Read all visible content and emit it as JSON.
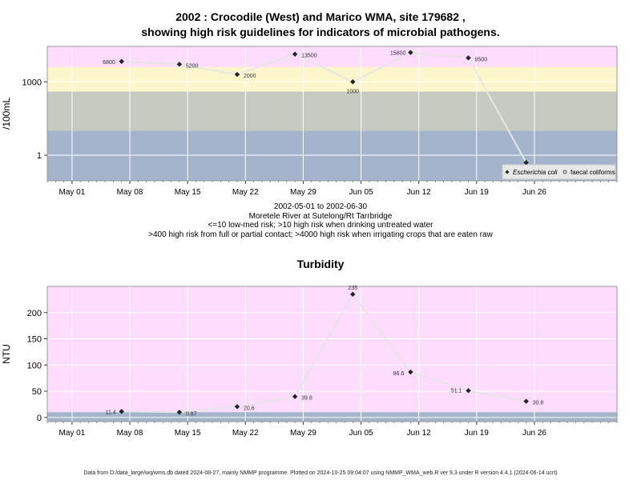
{
  "title_line1": "2002 : Crocodile (West) and Marico WMA, site 179682 ,",
  "title_line2": "showing high risk guidelines for indicators of microbial pathogens.",
  "date_range": "2002-05-01 to 2002-06-30",
  "site_name": "Moretele River at Sutelong/Rt Tarrbridge",
  "note1": "<=10 low-med risk; >10 high risk when drinking untreated water",
  "note2": ">400 high risk from full or partial contact; >4000 high risk when irrigating crops that are eaten raw",
  "footer": "Data from D:/data_large/wq/wms.db dated 2024-08-27, mainly NMMP programme. Plotted on 2024-10-25 09:04:07 using NMMP_WMA_web.R ver 9.3 under R version 4.4.1 (2024-06-14 ucrt)",
  "colors": {
    "pink": "#fddcfd",
    "yellow": "#fdf6cb",
    "green": "#c6cac0",
    "blue": "#a3b4cc",
    "line": "#e6e6e6",
    "point": "#222222"
  },
  "chart_data": [
    {
      "type": "line",
      "title": "",
      "xlabel": "",
      "ylabel": "/100mL",
      "y_scale": "log",
      "ylim": [
        0.09,
        28000
      ],
      "x_ticks": [
        "May 01",
        "May 08",
        "May 15",
        "May 22",
        "May 29",
        "Jun 05",
        "Jun 12",
        "Jun 19",
        "Jun 26"
      ],
      "x_tick_dates": [
        "2002-05-01",
        "2002-05-08",
        "2002-05-15",
        "2002-05-22",
        "2002-05-29",
        "2002-06-05",
        "2002-06-12",
        "2002-06-19",
        "2002-06-26"
      ],
      "xlim": [
        "2002-04-28",
        "2002-07-06"
      ],
      "y_ticks": [
        1,
        1000
      ],
      "y_tick_labels": [
        "1",
        "1000"
      ],
      "bands": [
        {
          "from": 4000,
          "to": 28000,
          "color": "#fddcfd"
        },
        {
          "from": 400,
          "to": 4000,
          "color": "#fdf6cb"
        },
        {
          "from": 10,
          "to": 400,
          "color": "#c6cac0"
        },
        {
          "from": 0.09,
          "to": 10,
          "color": "#a3b4cc"
        }
      ],
      "grid": true,
      "legend_position": "bottom-right",
      "legend": [
        {
          "label": "Escherichia coli",
          "marker": "filled",
          "italic": true
        },
        {
          "label": "faecal coliforms",
          "marker": "open",
          "italic": false
        }
      ],
      "series": [
        {
          "name": "Escherichia coli",
          "x": [
            "2002-05-07",
            "2002-05-14",
            "2002-05-21",
            "2002-05-28",
            "2002-06-04",
            "2002-06-11",
            "2002-06-18",
            "2002-06-25"
          ],
          "values": [
            6800,
            5200,
            2000,
            13500,
            1000,
            15800,
            9500,
            0.5
          ],
          "labels": [
            "6800",
            "5200",
            "2000",
            "13500",
            "1000",
            "15800",
            "9500",
            ""
          ]
        }
      ]
    },
    {
      "type": "line",
      "title": "Turbidity",
      "xlabel": "",
      "ylabel": "NTU",
      "y_scale": "linear",
      "ylim": [
        -8,
        250
      ],
      "x_ticks": [
        "May 01",
        "May 08",
        "May 15",
        "May 22",
        "May 29",
        "Jun 05",
        "Jun 12",
        "Jun 19",
        "Jun 26"
      ],
      "x_tick_dates": [
        "2002-05-01",
        "2002-05-08",
        "2002-05-15",
        "2002-05-22",
        "2002-05-29",
        "2002-06-05",
        "2002-06-12",
        "2002-06-19",
        "2002-06-26"
      ],
      "xlim": [
        "2002-04-28",
        "2002-07-06"
      ],
      "y_ticks": [
        0,
        50,
        100,
        150,
        200
      ],
      "y_tick_labels": [
        "0",
        "50",
        "100",
        "150",
        "200"
      ],
      "bands": [
        {
          "from": 10,
          "to": 250,
          "color": "#fddcfd"
        },
        {
          "from": -8,
          "to": 10,
          "color": "#a3b4cc"
        }
      ],
      "grid": true,
      "series": [
        {
          "name": "Turbidity",
          "x": [
            "2002-05-07",
            "2002-05-14",
            "2002-05-21",
            "2002-05-28",
            "2002-06-04",
            "2002-06-11",
            "2002-06-18",
            "2002-06-25"
          ],
          "values": [
            11.4,
            9.87,
            20.6,
            39.8,
            235,
            86.6,
            51.1,
            30.8
          ],
          "labels": [
            "11.4",
            "9.87",
            "20.6",
            "39.8",
            "235",
            "86.6",
            "51.1",
            "30.8"
          ]
        }
      ]
    }
  ]
}
